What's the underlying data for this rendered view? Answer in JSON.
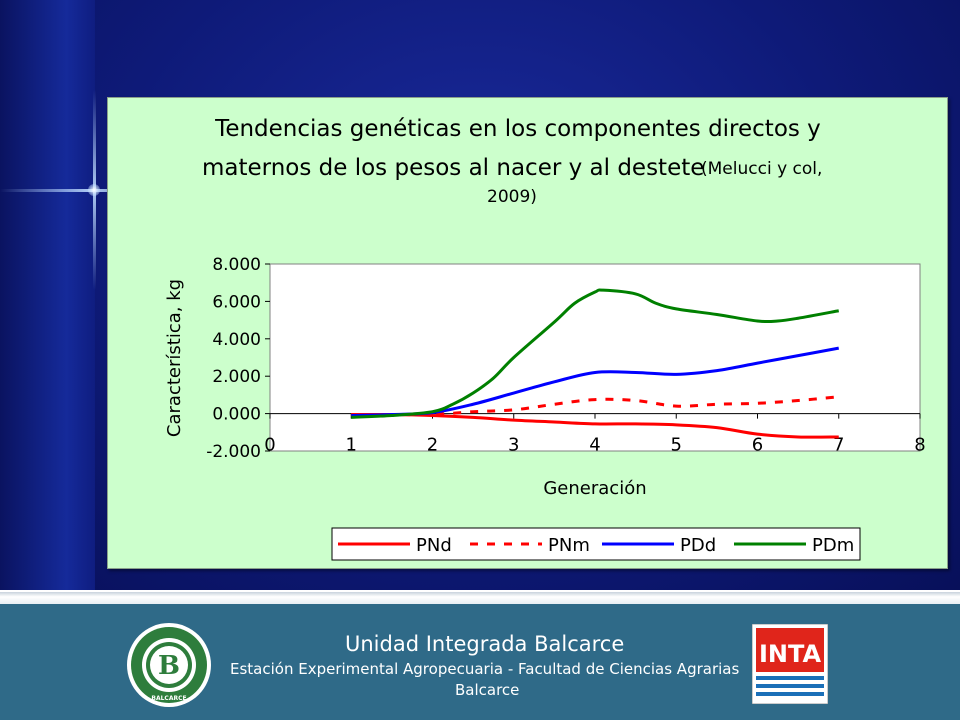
{
  "colors": {
    "PNd": "#ff0000",
    "PNm": "#ff0000",
    "PDd": "#0000ff",
    "PDm": "#008000",
    "panel_bg": "#ccffcc",
    "footer_bg": "#2f6a88"
  },
  "chart_data": {
    "type": "line",
    "title_lines": [
      "Tendencias genéticas en los componentes directos y",
      "maternos de los pesos al nacer y al destete"
    ],
    "citation_lines": [
      "(Melucci y col,",
      "2009)"
    ],
    "xlabel": "Generación",
    "ylabel": "Característica, kg",
    "xlim": [
      0,
      8
    ],
    "ylim": [
      -2,
      8
    ],
    "x_ticks": [
      "0",
      "1",
      "2",
      "3",
      "4",
      "5",
      "6",
      "7",
      "8"
    ],
    "y_ticks": [
      "-2.000",
      "0.000",
      "2.000",
      "4.000",
      "6.000",
      "8.000"
    ],
    "y_tick_values": [
      -2,
      0,
      2,
      4,
      6,
      8
    ],
    "legend_position": "bottom",
    "grid": false,
    "series": [
      {
        "name": "PNd",
        "style": "solid",
        "x": [
          1,
          1.5,
          2,
          2.5,
          3,
          3.5,
          4,
          4.5,
          5,
          5.5,
          6,
          6.5,
          7
        ],
        "y": [
          -0.05,
          -0.05,
          -0.1,
          -0.2,
          -0.35,
          -0.45,
          -0.55,
          -0.55,
          -0.6,
          -0.75,
          -1.1,
          -1.25,
          -1.25
        ]
      },
      {
        "name": "PNm",
        "style": "dashed",
        "x": [
          1,
          1.5,
          2,
          2.5,
          3,
          3.5,
          4,
          4.5,
          5,
          5.5,
          6,
          6.5,
          7
        ],
        "y": [
          -0.05,
          -0.05,
          -0.05,
          0.1,
          0.2,
          0.5,
          0.75,
          0.7,
          0.4,
          0.5,
          0.55,
          0.7,
          0.9
        ]
      },
      {
        "name": "PDd",
        "style": "solid",
        "x": [
          1,
          1.5,
          2,
          2.5,
          3,
          3.5,
          4,
          4.5,
          5,
          5.5,
          6,
          6.5,
          7
        ],
        "y": [
          -0.1,
          -0.05,
          0.05,
          0.5,
          1.1,
          1.7,
          2.2,
          2.2,
          2.1,
          2.3,
          2.7,
          3.1,
          3.5
        ]
      },
      {
        "name": "PDm",
        "style": "solid",
        "x": [
          1,
          1.5,
          2,
          2.25,
          2.5,
          2.75,
          3,
          3.5,
          3.75,
          4,
          4.1,
          4.5,
          4.75,
          5,
          5.5,
          6,
          6.25,
          6.5,
          7
        ],
        "y": [
          -0.2,
          -0.1,
          0.1,
          0.5,
          1.1,
          1.9,
          3.0,
          4.9,
          5.9,
          6.5,
          6.6,
          6.4,
          5.9,
          5.6,
          5.3,
          4.95,
          4.95,
          5.1,
          5.5
        ]
      }
    ]
  },
  "footer": {
    "title": "Unidad Integrada Balcarce",
    "subtitle": "Estación Experimental Agropecuaria - Facultad de Ciencias Agrarias",
    "city": "Balcarce",
    "seal_letter": "B",
    "seal_text": "BALCARCE",
    "inta_text": "INTA"
  }
}
